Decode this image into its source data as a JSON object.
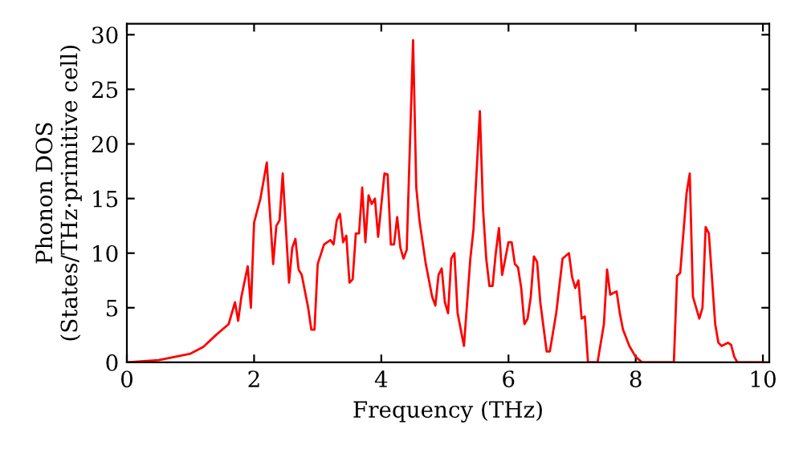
{
  "chart_data": {
    "type": "line",
    "xlabel": "Frequency (THz)",
    "ylabel": "Phonon DOS\n(States/THz·primitive cell)",
    "xlim": [
      0,
      10.1
    ],
    "ylim": [
      0,
      31
    ],
    "xticks": [
      0,
      2,
      4,
      6,
      8,
      10
    ],
    "yticks": [
      0,
      5,
      10,
      15,
      20,
      25,
      30
    ],
    "grid": false,
    "legend": false,
    "marker": "none",
    "line_style": "solid",
    "series": [
      {
        "color": "#ff0000",
        "x": [
          0,
          0.5,
          1,
          1.2,
          1.4,
          1.6,
          1.7,
          1.75,
          1.8,
          1.9,
          1.95,
          2.0,
          2.1,
          2.2,
          2.3,
          2.35,
          2.4,
          2.45,
          2.55,
          2.6,
          2.65,
          2.7,
          2.75,
          2.85,
          2.9,
          2.95,
          3.0,
          3.1,
          3.2,
          3.25,
          3.3,
          3.35,
          3.4,
          3.45,
          3.5,
          3.55,
          3.6,
          3.65,
          3.7,
          3.75,
          3.8,
          3.85,
          3.9,
          3.95,
          4.05,
          4.1,
          4.15,
          4.2,
          4.25,
          4.3,
          4.35,
          4.4,
          4.5,
          4.55,
          4.6,
          4.7,
          4.8,
          4.85,
          4.9,
          4.95,
          5.0,
          5.05,
          5.1,
          5.15,
          5.2,
          5.3,
          5.4,
          5.45,
          5.55,
          5.6,
          5.65,
          5.7,
          5.75,
          5.8,
          5.85,
          5.9,
          5.95,
          6.0,
          6.05,
          6.1,
          6.15,
          6.2,
          6.25,
          6.3,
          6.35,
          6.4,
          6.45,
          6.5,
          6.6,
          6.65,
          6.75,
          6.85,
          6.95,
          7.0,
          7.05,
          7.1,
          7.15,
          7.2,
          7.25,
          7.4,
          7.5,
          7.55,
          7.6,
          7.7,
          7.75,
          7.8,
          7.9,
          8.0,
          8.1,
          8.6,
          8.65,
          8.7,
          8.8,
          8.85,
          8.9,
          9.0,
          9.05,
          9.1,
          9.15,
          9.25,
          9.3,
          9.35,
          9.45,
          9.5,
          9.55,
          9.6,
          10.0
        ],
        "values": [
          0,
          0.2,
          0.8,
          1.4,
          2.5,
          3.5,
          5.5,
          3.8,
          6,
          8.8,
          5,
          12.8,
          15,
          18.3,
          9,
          12.5,
          13,
          17.3,
          7.3,
          10.5,
          11.3,
          8.5,
          8,
          5,
          3,
          3,
          9,
          10.8,
          11.2,
          10.8,
          13,
          13.6,
          11,
          11.6,
          7.3,
          7.6,
          11.8,
          11.8,
          16,
          11,
          15.3,
          14.5,
          15,
          11.5,
          17.3,
          17.2,
          10.8,
          10.8,
          13.3,
          10.5,
          9.5,
          10.3,
          29.5,
          16,
          13,
          9,
          6,
          5.2,
          8,
          8.6,
          5.5,
          4.5,
          9.5,
          10,
          4.5,
          1.5,
          9.5,
          12.2,
          23,
          14,
          9.5,
          7,
          7,
          10,
          12.3,
          8,
          9.5,
          11,
          11,
          9,
          8.7,
          6.8,
          3.5,
          4,
          6,
          9.7,
          9.2,
          5.5,
          1,
          1,
          4.5,
          9.5,
          10,
          7.8,
          6.8,
          7.5,
          4,
          4.2,
          0,
          0,
          3.5,
          8.5,
          6.2,
          6.5,
          4.5,
          3,
          1.5,
          0.5,
          0,
          0,
          7.9,
          8.2,
          15.5,
          17.3,
          6,
          4,
          5,
          12.4,
          11.8,
          3.5,
          1.8,
          1.5,
          1.8,
          1.6,
          0.5,
          0,
          0
        ]
      }
    ]
  }
}
